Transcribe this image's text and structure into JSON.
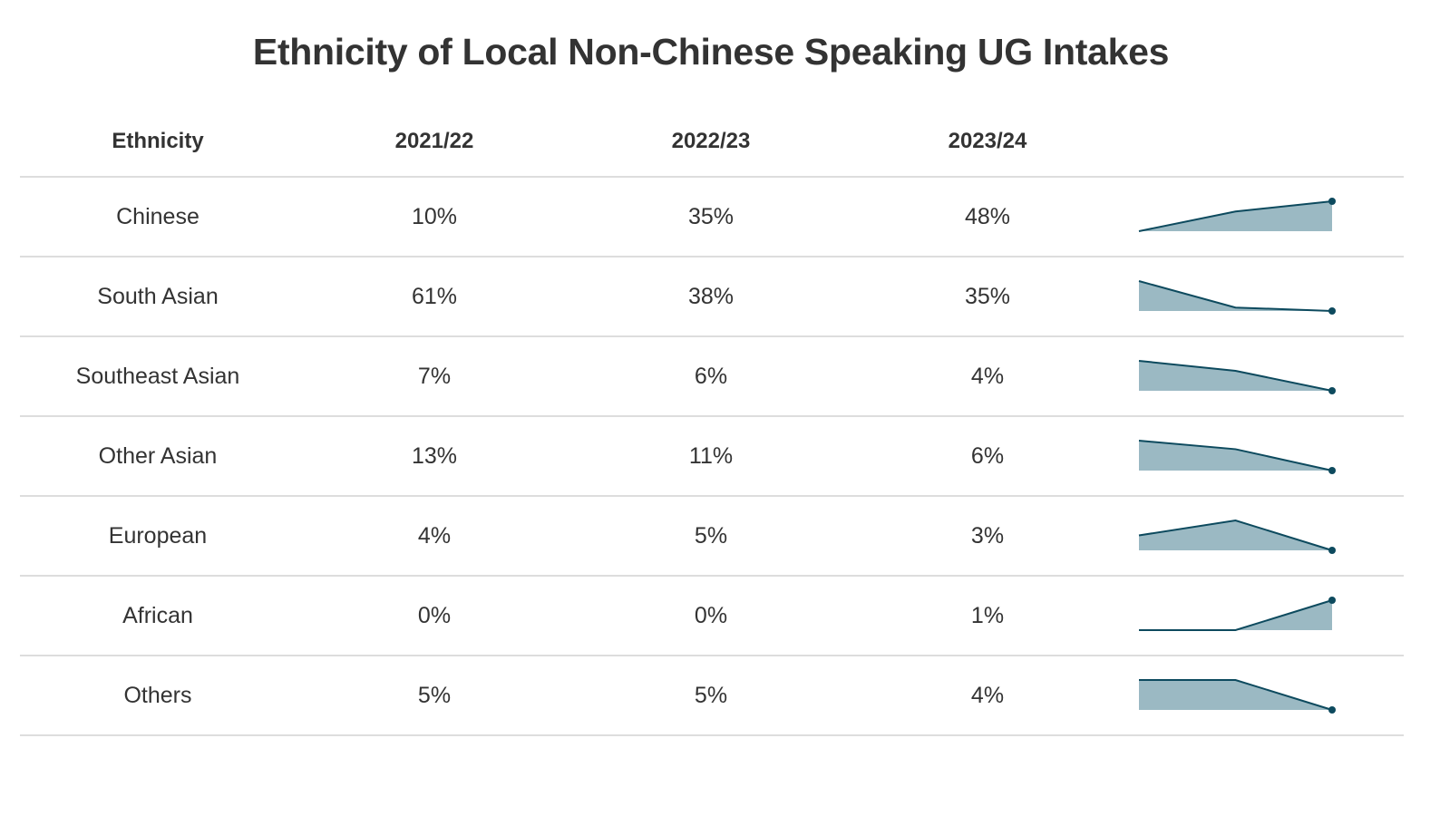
{
  "chart_data": {
    "type": "table",
    "title": "Ethnicity of Local Non-Chinese Speaking UG Intakes",
    "columns": [
      "Ethnicity",
      "2021/22",
      "2022/23",
      "2023/24"
    ],
    "rows": [
      {
        "ethnicity": "Chinese",
        "values": [
          10,
          35,
          48
        ],
        "labels": [
          "10%",
          "35%",
          "48%"
        ]
      },
      {
        "ethnicity": "South Asian",
        "values": [
          61,
          38,
          35
        ],
        "labels": [
          "61%",
          "38%",
          "35%"
        ]
      },
      {
        "ethnicity": "Southeast Asian",
        "values": [
          7,
          6,
          4
        ],
        "labels": [
          "7%",
          "6%",
          "4%"
        ]
      },
      {
        "ethnicity": "Other Asian",
        "values": [
          13,
          11,
          6
        ],
        "labels": [
          "13%",
          "11%",
          "6%"
        ]
      },
      {
        "ethnicity": "European",
        "values": [
          4,
          5,
          3
        ],
        "labels": [
          "4%",
          "5%",
          "3%"
        ]
      },
      {
        "ethnicity": "African",
        "values": [
          0,
          0,
          1
        ],
        "labels": [
          "0%",
          "0%",
          "1%"
        ]
      },
      {
        "ethnicity": "Others",
        "values": [
          5,
          5,
          4
        ],
        "labels": [
          "5%",
          "5%",
          "4%"
        ]
      }
    ],
    "sparkline": {
      "type": "area",
      "line_color": "#0d4a5e",
      "fill_color": "#9bb9c3"
    }
  }
}
